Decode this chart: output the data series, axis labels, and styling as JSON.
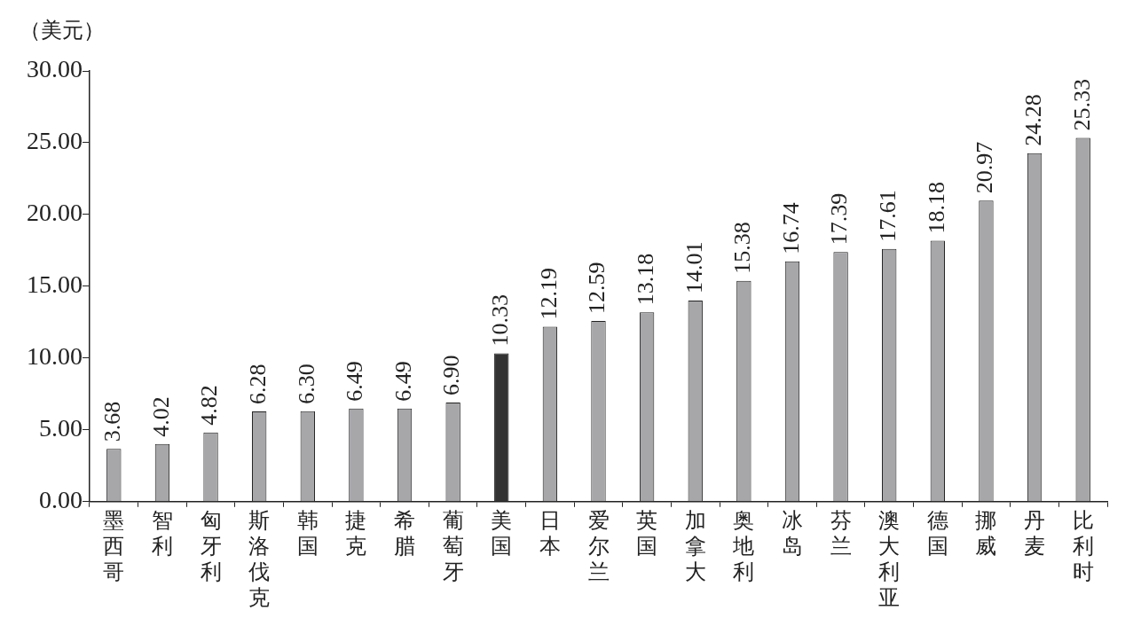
{
  "chart_data": {
    "type": "bar",
    "ylabel": "（美元）",
    "categories": [
      "墨西哥",
      "智利",
      "匈牙利",
      "斯洛伐克",
      "韩国",
      "捷克",
      "希腊",
      "葡萄牙",
      "美国",
      "日本",
      "爱尔兰",
      "英国",
      "加拿大",
      "奥地利",
      "冰岛",
      "芬兰",
      "澳大利亚",
      "德国",
      "挪威",
      "丹麦",
      "比利时"
    ],
    "values": [
      3.68,
      4.02,
      4.82,
      6.28,
      6.3,
      6.49,
      6.49,
      6.9,
      10.33,
      12.19,
      12.59,
      13.18,
      14.01,
      15.38,
      16.74,
      17.39,
      17.61,
      18.18,
      20.97,
      24.28,
      25.33
    ],
    "value_labels": [
      "3.68",
      "4.02",
      "4.82",
      "6.28",
      "6.30",
      "6.49",
      "6.49",
      "6.90",
      "10.33",
      "12.19",
      "12.59",
      "13.18",
      "14.01",
      "15.38",
      "16.74",
      "17.39",
      "17.61",
      "18.18",
      "20.97",
      "24.28",
      "25.33"
    ],
    "colors": [
      "#a7a7aa",
      "#a7a7aa",
      "#a7a7aa",
      "#a7a7aa",
      "#a7a7aa",
      "#a7a7aa",
      "#a7a7aa",
      "#a7a7aa",
      "#333333",
      "#a7a7aa",
      "#a7a7aa",
      "#a7a7aa",
      "#a7a7aa",
      "#a7a7aa",
      "#a7a7aa",
      "#a7a7aa",
      "#a7a7aa",
      "#a7a7aa",
      "#a7a7aa",
      "#a7a7aa",
      "#a7a7aa"
    ],
    "ylim": [
      0,
      30
    ],
    "yticks": [
      {
        "value": 0,
        "label": "0.00"
      },
      {
        "value": 5,
        "label": "5.00"
      },
      {
        "value": 10,
        "label": "10.00"
      },
      {
        "value": 15,
        "label": "15.00"
      },
      {
        "value": 20,
        "label": "20.00"
      },
      {
        "value": 25,
        "label": "25.00"
      },
      {
        "value": 30,
        "label": "30.00"
      }
    ],
    "grid": false,
    "legend": false
  }
}
